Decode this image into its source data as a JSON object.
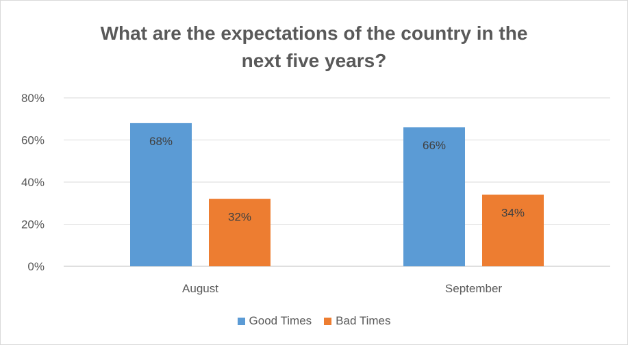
{
  "chart_data": {
    "type": "bar",
    "title_lines": [
      "What are the expectations of the country in the",
      "next five years?"
    ],
    "categories": [
      "August",
      "September"
    ],
    "series": [
      {
        "name": "Good Times",
        "values": [
          68,
          66
        ],
        "labels": [
          "68%",
          "66%"
        ],
        "color": "#5b9bd5"
      },
      {
        "name": "Bad Times",
        "values": [
          32,
          34
        ],
        "labels": [
          "32%",
          "34%"
        ],
        "color": "#ed7d31"
      }
    ],
    "ylim": [
      0,
      80
    ],
    "yticks": [
      "0%",
      "20%",
      "40%",
      "60%",
      "80%"
    ],
    "grid": true,
    "legend_position": "bottom"
  }
}
